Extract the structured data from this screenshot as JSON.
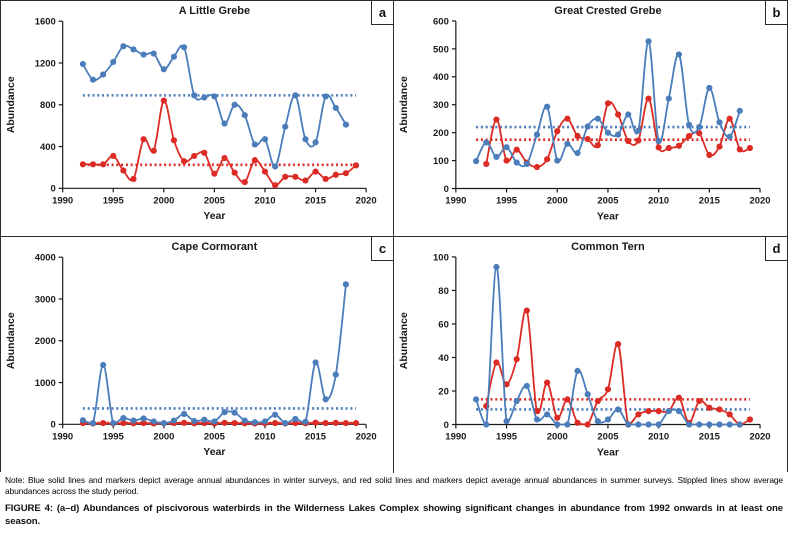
{
  "figure": {
    "note": "Note: Blue solid lines and markers depict average annual abundances in winter surveys, and red solid lines and markers depict average annual abundances in summer surveys. Stippled lines show average abundances across the study period.",
    "caption": "FIGURE 4: (a–d) Abundances of piscivorous waterbirds in the Wilderness Lakes Complex showing significant changes in abundance from 1992 onwards in at least one season."
  },
  "palette": {
    "winter_blue": "#4a7dba",
    "summer_red": "#dc2b24",
    "axis_color": "#1a1a1a"
  },
  "chart_data": [
    {
      "type": "line",
      "panel_label": "a",
      "title": "A Little Grebe",
      "xlabel": "Year",
      "ylabel": "Abundance",
      "xlim": [
        1990,
        2020
      ],
      "ylim": [
        0,
        1600
      ],
      "xticks": [
        1990,
        1995,
        2000,
        2005,
        2010,
        2015,
        2020
      ],
      "yticks": [
        0,
        400,
        800,
        1200,
        1600
      ],
      "grid": false,
      "legend": "none",
      "series": [
        {
          "name": "Winter average annual abundance",
          "color": "#4a7dba",
          "years": [
            1992,
            1993,
            1994,
            1995,
            1996,
            1997,
            1998,
            1999,
            2000,
            2001,
            2002,
            2003,
            2004,
            2005,
            2006,
            2007,
            2008,
            2009,
            2010,
            2011,
            2012,
            2013,
            2014,
            2015,
            2016,
            2017,
            2018
          ],
          "values": [
            1190,
            1040,
            1090,
            1210,
            1360,
            1330,
            1280,
            1290,
            1140,
            1260,
            1350,
            890,
            870,
            880,
            620,
            800,
            700,
            420,
            470,
            210,
            590,
            890,
            470,
            440,
            880,
            770,
            610
          ],
          "average_line": 890
        },
        {
          "name": "Summer average annual abundance",
          "color": "#dc2b24",
          "years": [
            1992,
            1993,
            1994,
            1995,
            1996,
            1997,
            1998,
            1999,
            2000,
            2001,
            2002,
            2003,
            2004,
            2005,
            2006,
            2007,
            2008,
            2009,
            2010,
            2011,
            2012,
            2013,
            2014,
            2015,
            2016,
            2017,
            2018,
            2019
          ],
          "values": [
            230,
            230,
            230,
            310,
            170,
            90,
            470,
            360,
            840,
            460,
            260,
            310,
            340,
            140,
            290,
            150,
            60,
            270,
            160,
            30,
            110,
            110,
            75,
            160,
            90,
            130,
            145,
            220
          ],
          "average_line": 225
        }
      ]
    },
    {
      "type": "line",
      "panel_label": "b",
      "title": "Great Crested Grebe",
      "xlabel": "Year",
      "ylabel": "Abundance",
      "xlim": [
        1990,
        2020
      ],
      "ylim": [
        0,
        600
      ],
      "xticks": [
        1990,
        1995,
        2000,
        2005,
        2010,
        2015,
        2020
      ],
      "yticks": [
        0,
        100,
        200,
        300,
        400,
        500,
        600
      ],
      "grid": false,
      "legend": "none",
      "series": [
        {
          "name": "Winter average annual abundance",
          "color": "#4a7dba",
          "years": [
            1992,
            1993,
            1994,
            1995,
            1996,
            1997,
            1998,
            1999,
            2000,
            2001,
            2002,
            2003,
            2004,
            2005,
            2006,
            2007,
            2008,
            2009,
            2010,
            2011,
            2012,
            2013,
            2014,
            2015,
            2016,
            2017,
            2018
          ],
          "values": [
            98,
            165,
            113,
            148,
            93,
            88,
            193,
            293,
            100,
            160,
            127,
            222,
            250,
            200,
            193,
            265,
            207,
            527,
            170,
            322,
            480,
            228,
            220,
            360,
            237,
            185,
            278
          ],
          "average_line": 220
        },
        {
          "name": "Summer average annual abundance",
          "color": "#dc2b24",
          "years": [
            1993,
            1994,
            1995,
            1996,
            1997,
            1998,
            1999,
            2000,
            2001,
            2002,
            2003,
            2004,
            2005,
            2006,
            2007,
            2008,
            2009,
            2010,
            2011,
            2012,
            2013,
            2014,
            2015,
            2016,
            2017,
            2018,
            2019
          ],
          "values": [
            88,
            247,
            100,
            139,
            93,
            77,
            105,
            205,
            250,
            188,
            177,
            155,
            305,
            265,
            170,
            172,
            322,
            147,
            145,
            153,
            188,
            198,
            120,
            150,
            250,
            140,
            145
          ],
          "average_line": 175
        }
      ]
    },
    {
      "type": "line",
      "panel_label": "c",
      "title": "Cape Cormorant",
      "xlabel": "Year",
      "ylabel": "Abundance",
      "xlim": [
        1990,
        2020
      ],
      "ylim": [
        0,
        4000
      ],
      "xticks": [
        1990,
        1995,
        2000,
        2005,
        2010,
        2015,
        2020
      ],
      "yticks": [
        0,
        1000,
        2000,
        3000,
        4000
      ],
      "grid": false,
      "legend": "none",
      "series": [
        {
          "name": "Winter average annual abundance",
          "color": "#4a7dba",
          "years": [
            1992,
            1993,
            1994,
            1995,
            1996,
            1997,
            1998,
            1999,
            2000,
            2001,
            2002,
            2003,
            2004,
            2005,
            2006,
            2007,
            2008,
            2009,
            2010,
            2011,
            2012,
            2013,
            2014,
            2015,
            2016,
            2017,
            2018
          ],
          "values": [
            100,
            30,
            1420,
            30,
            150,
            90,
            140,
            70,
            30,
            90,
            250,
            80,
            110,
            70,
            290,
            280,
            90,
            50,
            70,
            230,
            30,
            130,
            60,
            1480,
            600,
            1190,
            3350
          ],
          "average_line": 380
        },
        {
          "name": "Summer average annual abundance",
          "color": "#dc2b24",
          "years": [
            1992,
            1993,
            1994,
            1995,
            1996,
            1997,
            1998,
            1999,
            2000,
            2001,
            2002,
            2003,
            2004,
            2005,
            2006,
            2007,
            2008,
            2009,
            2010,
            2011,
            2012,
            2013,
            2014,
            2015,
            2016,
            2017,
            2018,
            2019
          ],
          "values": [
            30,
            20,
            30,
            20,
            30,
            25,
            30,
            20,
            25,
            30,
            35,
            25,
            30,
            20,
            35,
            30,
            25,
            20,
            25,
            30,
            20,
            30,
            25,
            40,
            30,
            35,
            30,
            30
          ],
          "average_line": 30
        }
      ]
    },
    {
      "type": "line",
      "panel_label": "d",
      "title": "Common Tern",
      "xlabel": "Year",
      "ylabel": "Abundance",
      "xlim": [
        1990,
        2020
      ],
      "ylim": [
        0,
        100
      ],
      "xticks": [
        1990,
        1995,
        2000,
        2005,
        2010,
        2015,
        2020
      ],
      "yticks": [
        0,
        20,
        40,
        60,
        80,
        100
      ],
      "grid": false,
      "legend": "none",
      "series": [
        {
          "name": "Winter average annual abundance",
          "color": "#4a7dba",
          "years": [
            1992,
            1993,
            1994,
            1995,
            1996,
            1997,
            1998,
            1999,
            2000,
            2001,
            2002,
            2003,
            2004,
            2005,
            2006,
            2007,
            2008,
            2009,
            2010,
            2011,
            2012,
            2013,
            2014,
            2015,
            2016,
            2017,
            2018
          ],
          "values": [
            15,
            0,
            94,
            2,
            14,
            23,
            3,
            6,
            0,
            0,
            32,
            18,
            2,
            3,
            9,
            0,
            0,
            0,
            0,
            8,
            8,
            0,
            0,
            0,
            0,
            0,
            0
          ],
          "average_line": 9
        },
        {
          "name": "Summer average annual abundance",
          "color": "#dc2b24",
          "years": [
            1993,
            1994,
            1995,
            1996,
            1997,
            1998,
            1999,
            2000,
            2001,
            2002,
            2003,
            2004,
            2005,
            2006,
            2007,
            2008,
            2009,
            2010,
            2011,
            2012,
            2013,
            2014,
            2015,
            2016,
            2017,
            2018,
            2019
          ],
          "values": [
            11,
            37,
            24,
            39,
            68,
            8,
            25,
            4,
            15,
            1,
            0,
            14,
            21,
            48,
            0,
            6,
            8,
            8,
            8,
            16,
            1,
            14,
            10,
            9,
            6,
            0,
            3
          ],
          "average_line": 15
        }
      ]
    }
  ]
}
